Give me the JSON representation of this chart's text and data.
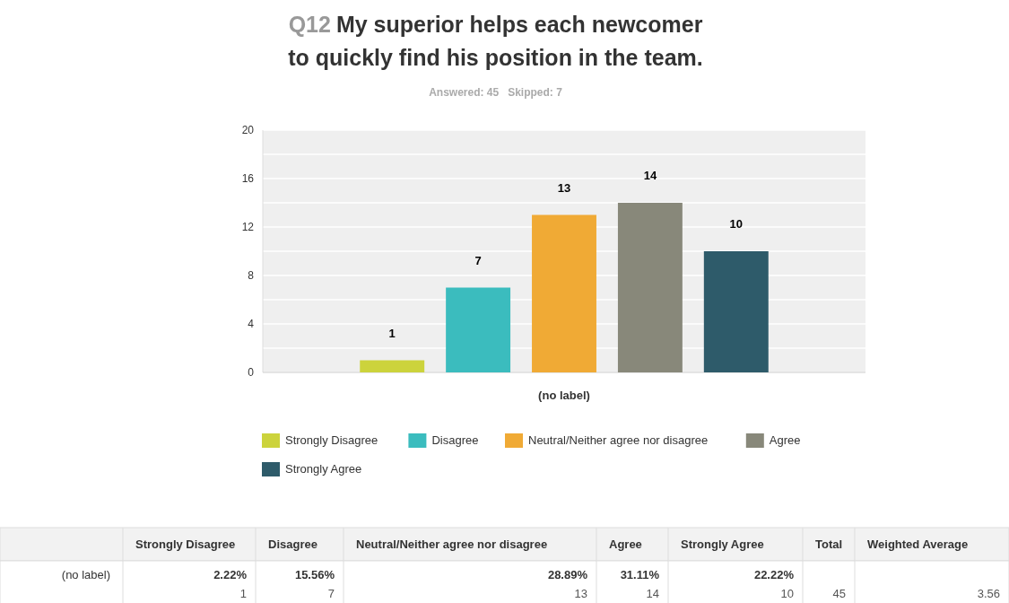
{
  "chart_data": {
    "type": "bar",
    "title": "Q12 My superior helps each newcomer to quickly find his position in the team.",
    "subtitle": "Answered: 45   Skipped: 7",
    "categories": [
      "(no label)"
    ],
    "series": [
      {
        "name": "Strongly Disagree",
        "color": "#ccd33c",
        "values": [
          1
        ]
      },
      {
        "name": "Disagree",
        "color": "#3bbcbe",
        "values": [
          7
        ]
      },
      {
        "name": "Neutral/Neither agree nor disagree",
        "color": "#f0aa35",
        "values": [
          13
        ]
      },
      {
        "name": "Agree",
        "color": "#88887a",
        "values": [
          14
        ]
      },
      {
        "name": "Strongly Agree",
        "color": "#2e5b6a",
        "values": [
          10
        ]
      }
    ],
    "ylim": [
      0,
      20
    ],
    "yticks": [
      0,
      {
        "value": 2,
        "label": null
      },
      4,
      {
        "value": 6,
        "label": null
      },
      8,
      {
        "value": 10,
        "label": null
      },
      12,
      {
        "value": 14,
        "label": null
      },
      16,
      {
        "value": 18,
        "label": null
      },
      20
    ],
    "grid": "y",
    "legend": "bottom",
    "data_labels": true,
    "annotations": [
      "2.22%",
      "15.56%",
      "28.89%",
      "31.11%",
      "22.22%",
      "Total",
      "45",
      "Weighted Average",
      "3.56",
      "1",
      "7",
      "13",
      "14",
      "10"
    ]
  }
}
